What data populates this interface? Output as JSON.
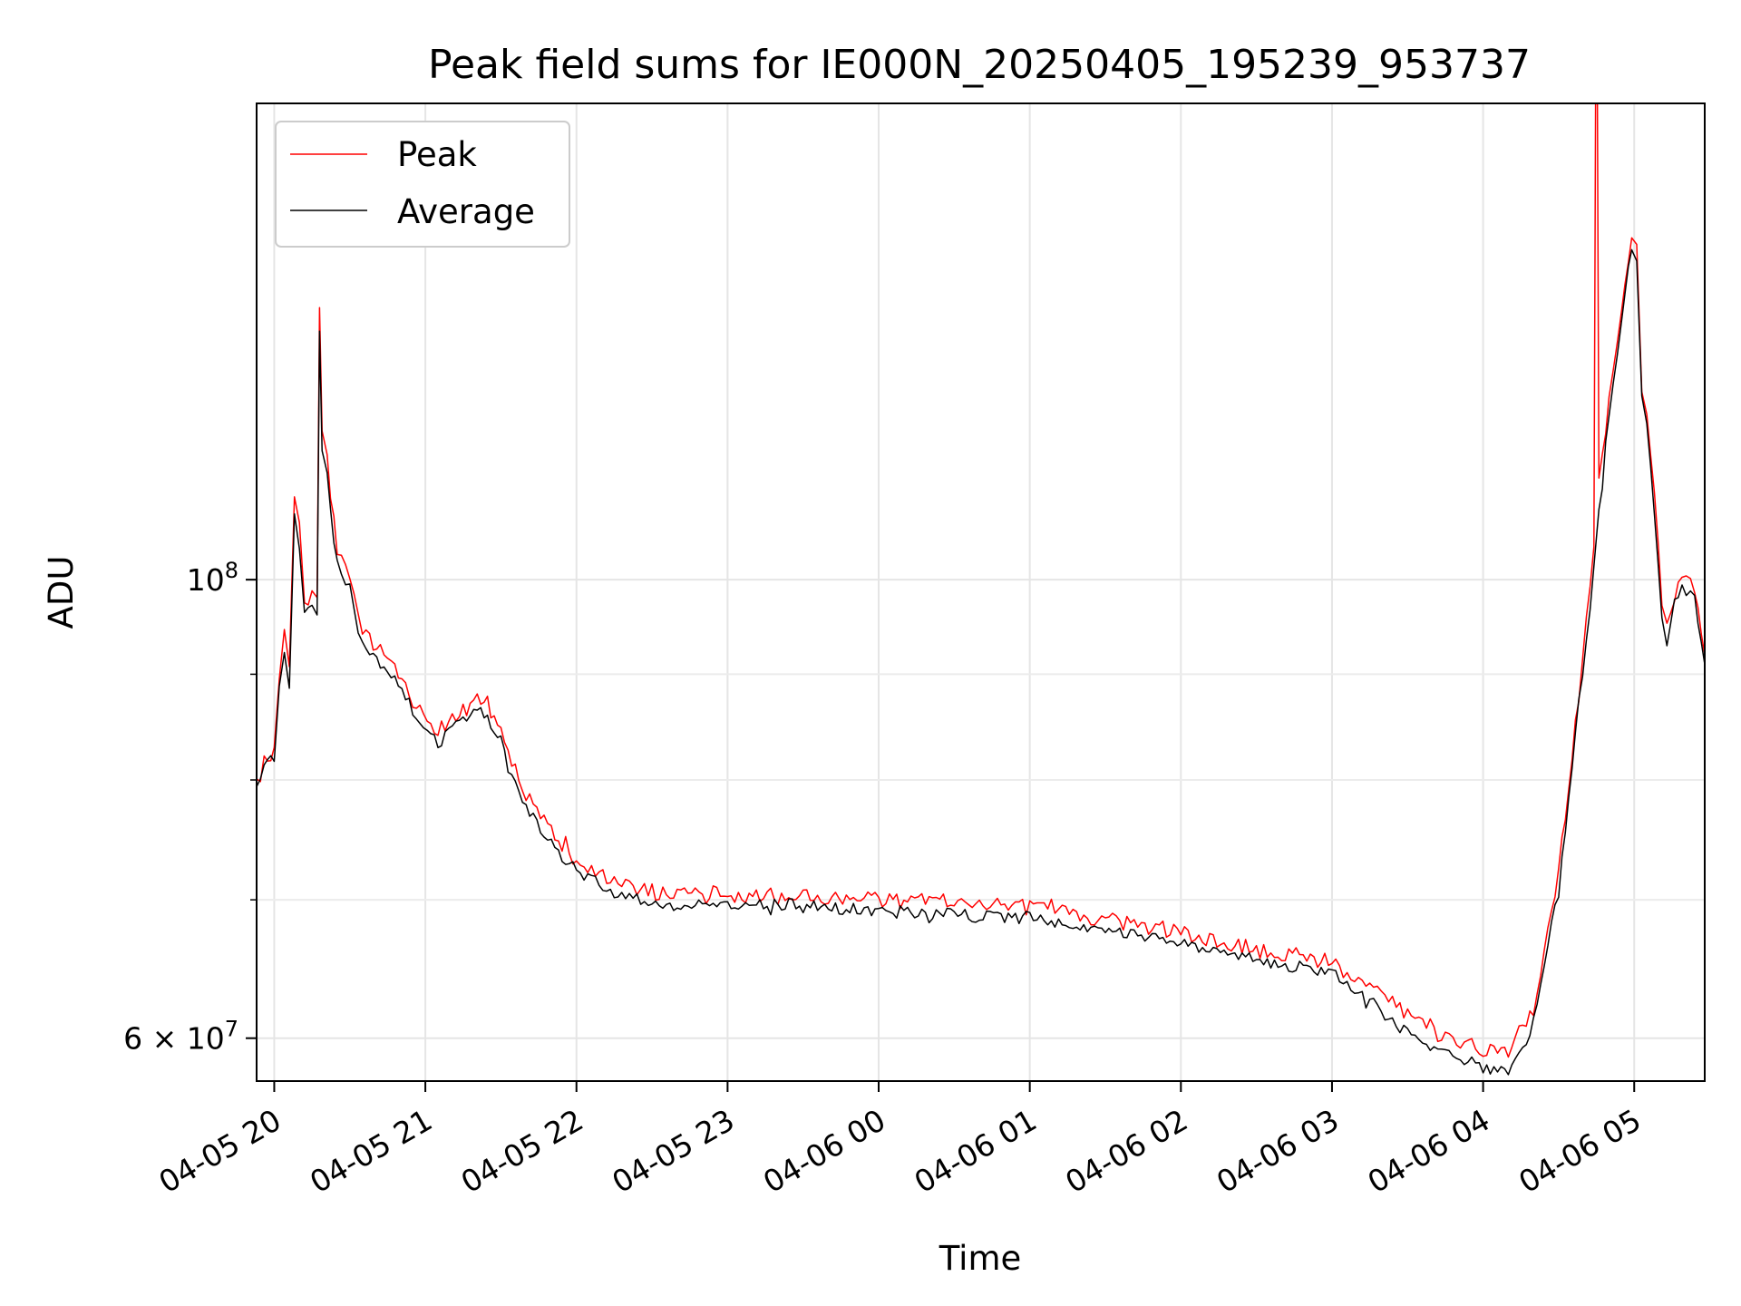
{
  "chart_data": {
    "type": "line",
    "title": "Peak field sums for IE000N_20250405_195239_953737",
    "xlabel": "Time",
    "ylabel": "ADU",
    "y_scale": "log",
    "ylim": [
      57200000,
      170000000
    ],
    "xlim": [
      "2025-04-05 19:53",
      "2025-04-06 05:28"
    ],
    "grid": true,
    "legend_position": "upper left",
    "x_ticks": [
      "04-05 20",
      "04-05 21",
      "04-05 22",
      "04-05 23",
      "04-06 00",
      "04-06 01",
      "04-06 02",
      "04-06 03",
      "04-06 04",
      "04-06 05"
    ],
    "y_ticks": [
      {
        "label_base": "10",
        "label_exp": "8",
        "value": 100000000
      },
      {
        "label_base": "6 × 10",
        "label_exp": "7",
        "value": 60000000
      }
    ],
    "y_minor_ticks": [
      70000000,
      80000000,
      90000000
    ],
    "series": [
      {
        "name": "Peak",
        "color": "#ff0000",
        "points": [
          [
            "2025-04-05 19:53",
            79500000
          ],
          [
            "2025-04-05 19:56",
            81500000
          ],
          [
            "2025-04-05 20:00",
            82500000
          ],
          [
            "2025-04-05 20:02",
            90000000
          ],
          [
            "2025-04-05 20:04",
            94000000
          ],
          [
            "2025-04-05 20:06",
            90000000
          ],
          [
            "2025-04-05 20:08",
            109000000
          ],
          [
            "2025-04-05 20:10",
            106000000
          ],
          [
            "2025-04-05 20:12",
            97000000
          ],
          [
            "2025-04-05 20:15",
            99000000
          ],
          [
            "2025-04-05 20:17",
            97500000
          ],
          [
            "2025-04-05 20:18",
            135000000
          ],
          [
            "2025-04-05 20:19",
            119000000
          ],
          [
            "2025-04-05 20:21",
            114000000
          ],
          [
            "2025-04-05 20:25",
            103000000
          ],
          [
            "2025-04-05 20:30",
            100500000
          ],
          [
            "2025-04-05 20:35",
            94500000
          ],
          [
            "2025-04-05 20:45",
            91500000
          ],
          [
            "2025-04-05 20:55",
            87500000
          ],
          [
            "2025-04-05 21:05",
            84000000
          ],
          [
            "2025-04-05 21:15",
            86500000
          ],
          [
            "2025-04-05 21:22",
            87500000
          ],
          [
            "2025-04-05 21:30",
            84500000
          ],
          [
            "2025-04-05 21:40",
            78500000
          ],
          [
            "2025-04-05 21:50",
            75500000
          ],
          [
            "2025-04-05 22:00",
            73000000
          ],
          [
            "2025-04-05 22:15",
            71500000
          ],
          [
            "2025-04-05 22:30",
            70500000
          ],
          [
            "2025-04-05 23:00",
            70200000
          ],
          [
            "2025-04-05 23:30",
            70300000
          ],
          [
            "2025-04-06 00:00",
            70000000
          ],
          [
            "2025-04-06 00:30",
            69800000
          ],
          [
            "2025-04-06 01:00",
            69400000
          ],
          [
            "2025-04-06 01:30",
            68500000
          ],
          [
            "2025-04-06 02:00",
            67500000
          ],
          [
            "2025-04-06 02:30",
            66200000
          ],
          [
            "2025-04-06 03:00",
            65300000
          ],
          [
            "2025-04-06 03:15",
            63500000
          ],
          [
            "2025-04-06 03:30",
            61500000
          ],
          [
            "2025-04-06 03:45",
            60000000
          ],
          [
            "2025-04-06 04:00",
            59200000
          ],
          [
            "2025-04-06 04:10",
            59200000
          ],
          [
            "2025-04-06 04:20",
            62000000
          ],
          [
            "2025-04-06 04:30",
            72000000
          ],
          [
            "2025-04-06 04:38",
            88000000
          ],
          [
            "2025-04-06 04:44",
            104000000
          ],
          [
            "2025-04-06 04:45",
            220000000
          ],
          [
            "2025-04-06 04:46",
            112000000
          ],
          [
            "2025-04-06 04:50",
            122000000
          ],
          [
            "2025-04-06 04:55",
            135000000
          ],
          [
            "2025-04-06 04:59",
            147000000
          ],
          [
            "2025-04-06 05:01",
            144000000
          ],
          [
            "2025-04-06 05:03",
            124000000
          ],
          [
            "2025-04-06 05:05",
            121000000
          ],
          [
            "2025-04-06 05:08",
            110000000
          ],
          [
            "2025-04-06 05:11",
            98000000
          ],
          [
            "2025-04-06 05:13",
            94500000
          ],
          [
            "2025-04-06 05:16",
            98500000
          ],
          [
            "2025-04-06 05:19",
            100000000
          ],
          [
            "2025-04-06 05:24",
            99000000
          ],
          [
            "2025-04-06 05:28",
            92000000
          ]
        ]
      },
      {
        "name": "Average",
        "color": "#000000",
        "points": [
          [
            "2025-04-05 19:53",
            79000000
          ],
          [
            "2025-04-05 19:56",
            81000000
          ],
          [
            "2025-04-05 20:00",
            82000000
          ],
          [
            "2025-04-05 20:02",
            89000000
          ],
          [
            "2025-04-05 20:04",
            92500000
          ],
          [
            "2025-04-05 20:06",
            88000000
          ],
          [
            "2025-04-05 20:08",
            107000000
          ],
          [
            "2025-04-05 20:10",
            104000000
          ],
          [
            "2025-04-05 20:12",
            96000000
          ],
          [
            "2025-04-05 20:15",
            97500000
          ],
          [
            "2025-04-05 20:17",
            95500000
          ],
          [
            "2025-04-05 20:18",
            132000000
          ],
          [
            "2025-04-05 20:19",
            116000000
          ],
          [
            "2025-04-05 20:21",
            112000000
          ],
          [
            "2025-04-05 20:25",
            101500000
          ],
          [
            "2025-04-05 20:30",
            99000000
          ],
          [
            "2025-04-05 20:35",
            93000000
          ],
          [
            "2025-04-05 20:45",
            90500000
          ],
          [
            "2025-04-05 20:55",
            86500000
          ],
          [
            "2025-04-05 21:05",
            83500000
          ],
          [
            "2025-04-05 21:15",
            85500000
          ],
          [
            "2025-04-05 21:22",
            86500000
          ],
          [
            "2025-04-05 21:30",
            83500000
          ],
          [
            "2025-04-05 21:40",
            77500000
          ],
          [
            "2025-04-05 21:50",
            74500000
          ],
          [
            "2025-04-05 22:00",
            72300000
          ],
          [
            "2025-04-05 22:15",
            70500000
          ],
          [
            "2025-04-05 22:30",
            69700000
          ],
          [
            "2025-04-05 23:00",
            69500000
          ],
          [
            "2025-04-05 23:30",
            69600000
          ],
          [
            "2025-04-06 00:00",
            69100000
          ],
          [
            "2025-04-06 00:30",
            68900000
          ],
          [
            "2025-04-06 01:00",
            68600000
          ],
          [
            "2025-04-06 01:30",
            67700000
          ],
          [
            "2025-04-06 02:00",
            66700000
          ],
          [
            "2025-04-06 02:30",
            65400000
          ],
          [
            "2025-04-06 03:00",
            64600000
          ],
          [
            "2025-04-06 03:15",
            62500000
          ],
          [
            "2025-04-06 03:30",
            60400000
          ],
          [
            "2025-04-06 03:45",
            59000000
          ],
          [
            "2025-04-06 04:00",
            58100000
          ],
          [
            "2025-04-06 04:10",
            58000000
          ],
          [
            "2025-04-06 04:20",
            61000000
          ],
          [
            "2025-04-06 04:30",
            71000000
          ],
          [
            "2025-04-06 04:38",
            87000000
          ],
          [
            "2025-04-06 04:44",
            101000000
          ],
          [
            "2025-04-06 04:46",
            108000000
          ],
          [
            "2025-04-06 04:50",
            120000000
          ],
          [
            "2025-04-06 04:55",
            133000000
          ],
          [
            "2025-04-06 04:59",
            145000000
          ],
          [
            "2025-04-06 05:01",
            142000000
          ],
          [
            "2025-04-06 05:03",
            122000000
          ],
          [
            "2025-04-06 05:05",
            119000000
          ],
          [
            "2025-04-06 05:08",
            108000000
          ],
          [
            "2025-04-06 05:11",
            96500000
          ],
          [
            "2025-04-06 05:13",
            93500000
          ],
          [
            "2025-04-06 05:16",
            97500000
          ],
          [
            "2025-04-06 05:19",
            99000000
          ],
          [
            "2025-04-06 05:24",
            98000000
          ],
          [
            "2025-04-06 05:28",
            91000000
          ]
        ]
      }
    ]
  }
}
